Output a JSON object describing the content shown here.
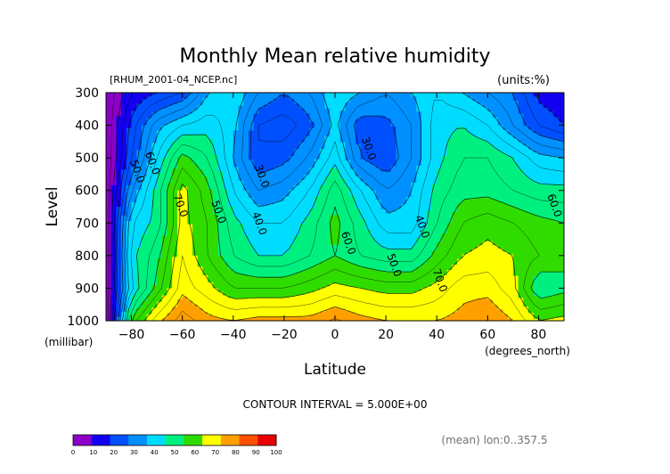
{
  "chart_data": {
    "type": "heatmap",
    "subtype": "filled-contour",
    "title": "Monthly Mean relative humidity",
    "file_label": "[RHUM_2001-04_NCEP.nc]",
    "units_label": "(units:%)",
    "xlabel": "Latitude",
    "x_units": "(degrees_north)",
    "ylabel": "Level",
    "y_units": "(millibar)",
    "xlim": [
      -90,
      90
    ],
    "ylim": [
      1000,
      300
    ],
    "x_ticks": [
      -80,
      -60,
      -40,
      -20,
      0,
      20,
      40,
      60,
      80
    ],
    "y_ticks": [
      300,
      400,
      500,
      600,
      700,
      800,
      900,
      1000
    ],
    "x_tick_labels": [
      "−80",
      "−60",
      "−40",
      "−20",
      "0",
      "20",
      "40",
      "60",
      "80"
    ],
    "y_tick_labels": [
      "300",
      "400",
      "500",
      "600",
      "700",
      "800",
      "900",
      "1000"
    ],
    "contour_interval_text": "CONTOUR INTERVAL = 5.000E+00",
    "mean_note": "(mean) lon:0..357.5",
    "contour_labels": [
      {
        "text": "50.0",
        "lat": -79,
        "lev": 545
      },
      {
        "text": "60.0",
        "lat": -73,
        "lev": 520
      },
      {
        "text": "70.0",
        "lat": -62,
        "lev": 650
      },
      {
        "text": "50.0",
        "lat": -47,
        "lev": 670
      },
      {
        "text": "30.0",
        "lat": -30,
        "lev": 560
      },
      {
        "text": "40.0",
        "lat": -31,
        "lev": 705
      },
      {
        "text": "60.0",
        "lat": 4,
        "lev": 765
      },
      {
        "text": "50.0",
        "lat": 22,
        "lev": 833
      },
      {
        "text": "70.0",
        "lat": 40,
        "lev": 880
      },
      {
        "text": "30.0",
        "lat": 12,
        "lev": 475
      },
      {
        "text": "40.0",
        "lat": 33,
        "lev": 715
      },
      {
        "text": "60.0",
        "lat": 85,
        "lev": 650
      }
    ],
    "colorbar": {
      "ticks": [
        "0",
        "10",
        "20",
        "30",
        "40",
        "50",
        "60",
        "70",
        "80",
        "90",
        "100"
      ],
      "colors": [
        "#8c00c8",
        "#1400f0",
        "#0050ff",
        "#0090ff",
        "#00dcff",
        "#00f080",
        "#30dc00",
        "#ffff00",
        "#ffa000",
        "#ff5000",
        "#e80000"
      ]
    },
    "levels": [
      0,
      10,
      20,
      30,
      40,
      50,
      60,
      70,
      80,
      90,
      100
    ],
    "latitudes": [
      -90,
      -80,
      -70,
      -60,
      -50,
      -40,
      -30,
      -20,
      -10,
      0,
      10,
      20,
      30,
      40,
      50,
      60,
      70,
      80,
      90
    ],
    "pressure_levels": [
      300,
      400,
      500,
      600,
      700,
      800,
      900,
      1000
    ],
    "values": [
      [
        0,
        15,
        20,
        25,
        40,
        45,
        35,
        30,
        35,
        45,
        40,
        35,
        40,
        45,
        40,
        35,
        30,
        18,
        15
      ],
      [
        0,
        22,
        38,
        45,
        48,
        42,
        25,
        22,
        28,
        42,
        26,
        28,
        35,
        48,
        50,
        45,
        35,
        25,
        20
      ],
      [
        0,
        25,
        45,
        62,
        55,
        40,
        25,
        28,
        36,
        48,
        30,
        25,
        35,
        48,
        55,
        55,
        50,
        42,
        40
      ],
      [
        0,
        35,
        52,
        72,
        62,
        45,
        35,
        38,
        45,
        58,
        45,
        35,
        40,
        52,
        58,
        58,
        55,
        52,
        52
      ],
      [
        0,
        45,
        52,
        72,
        65,
        52,
        45,
        45,
        52,
        62,
        52,
        42,
        42,
        55,
        65,
        68,
        65,
        62,
        60
      ],
      [
        0,
        48,
        58,
        75,
        65,
        55,
        50,
        50,
        55,
        60,
        55,
        52,
        52,
        62,
        70,
        72,
        70,
        65,
        62
      ],
      [
        0,
        45,
        62,
        78,
        72,
        65,
        65,
        65,
        68,
        72,
        70,
        68,
        68,
        72,
        78,
        78,
        72,
        55,
        58
      ],
      [
        0,
        62,
        78,
        88,
        82,
        80,
        82,
        82,
        82,
        86,
        82,
        80,
        80,
        80,
        82,
        85,
        80,
        70,
        72
      ]
    ]
  }
}
